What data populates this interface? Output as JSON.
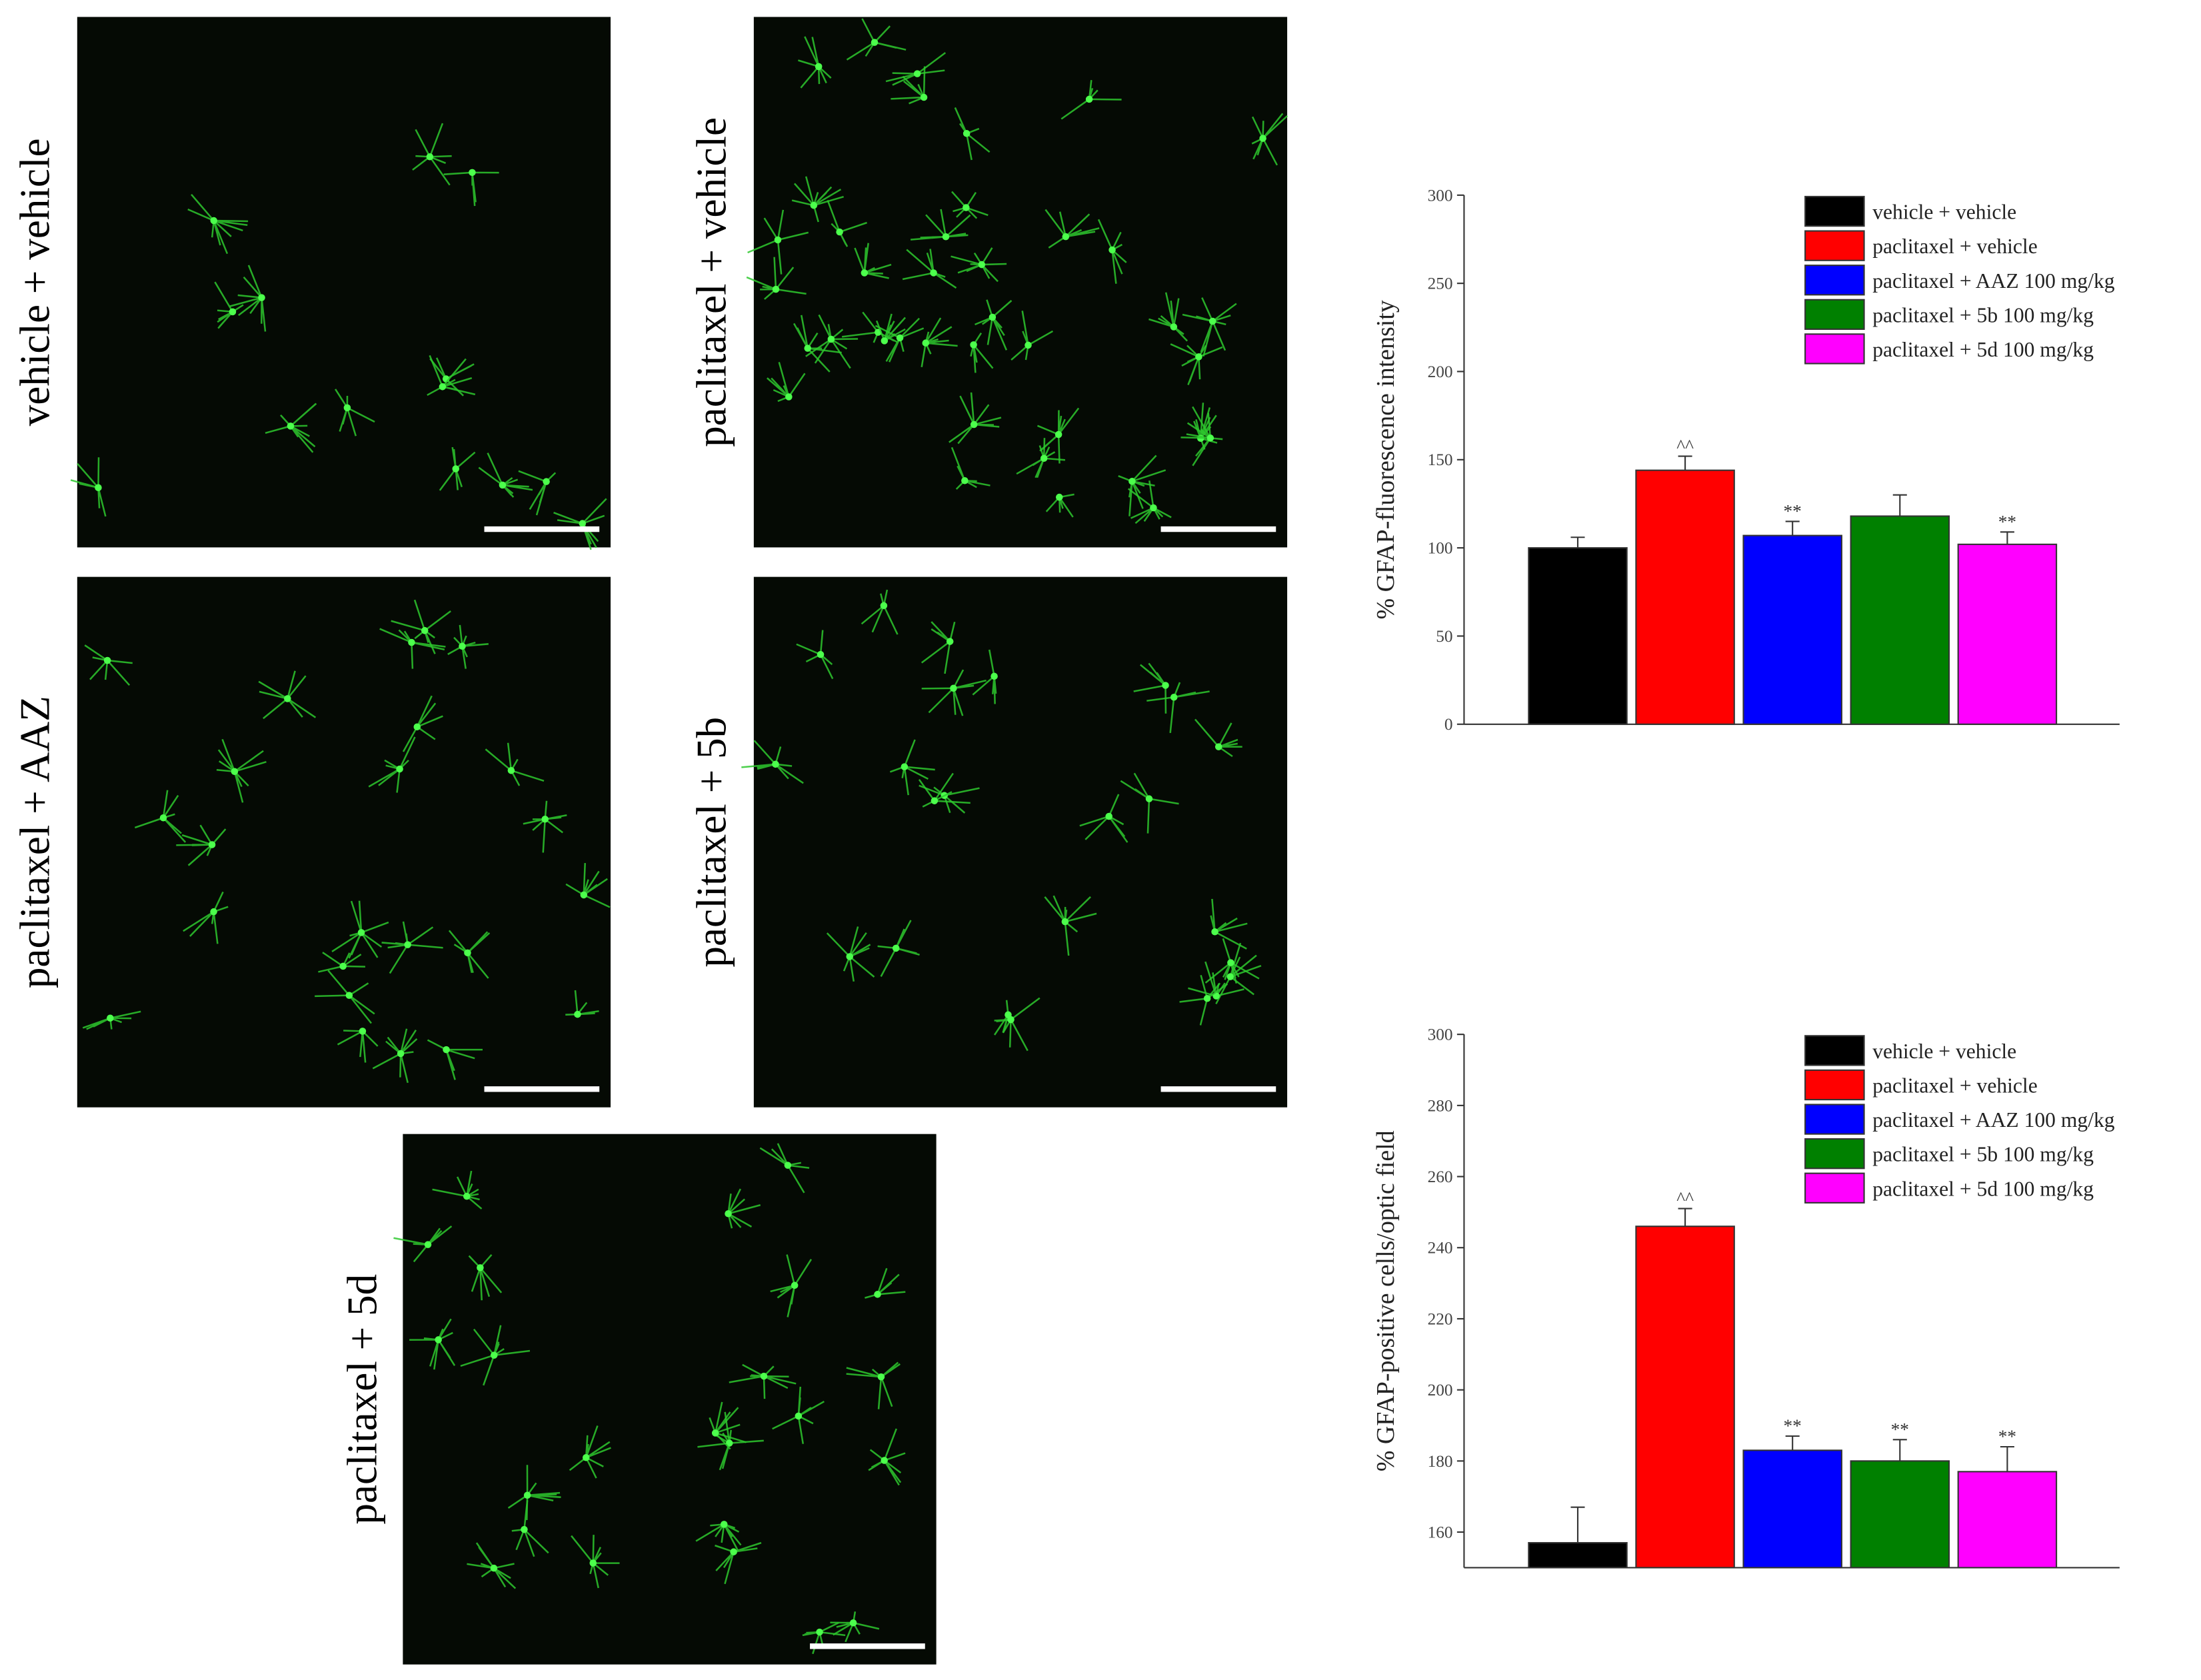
{
  "panels": [
    {
      "label": "vehicle + vehicle"
    },
    {
      "label": "paclitaxel + vehicle"
    },
    {
      "label": "paclitaxel + AAZ"
    },
    {
      "label": "paclitaxel + 5b"
    },
    {
      "label": "paclitaxel + 5d"
    }
  ],
  "chart_data": [
    {
      "type": "bar",
      "y_label": "% GFAP-fluorescence intensity",
      "categories": [
        "vehicle + vehicle",
        "paclitaxel + vehicle",
        "paclitaxel + AAZ 100 mg/kg",
        "paclitaxel + 5b 100 mg/kg",
        "paclitaxel + 5d 100 mg/kg"
      ],
      "colors": [
        "#000000",
        "#ff0000",
        "#0000ff",
        "#008000",
        "#ff00ff"
      ],
      "values": [
        100,
        144,
        107,
        118,
        102
      ],
      "errors": [
        6,
        8,
        8,
        12,
        7
      ],
      "annotations": [
        null,
        "^^",
        "**",
        null,
        "**"
      ],
      "ylim": [
        0,
        300
      ],
      "yticks": [
        0,
        50,
        100,
        150,
        200,
        250,
        300
      ],
      "legend": "upper right"
    },
    {
      "type": "bar",
      "y_label": "% GFAP-positive cells/optic field",
      "categories": [
        "vehicle + vehicle",
        "paclitaxel + vehicle",
        "paclitaxel + AAZ 100 mg/kg",
        "paclitaxel + 5b 100 mg/kg",
        "paclitaxel + 5d 100 mg/kg"
      ],
      "colors": [
        "#000000",
        "#ff0000",
        "#0000ff",
        "#008000",
        "#ff00ff"
      ],
      "values": [
        157,
        246,
        183,
        180,
        177
      ],
      "errors": [
        10,
        5,
        4,
        6,
        7
      ],
      "annotations": [
        null,
        "^^",
        "**",
        "**",
        "**"
      ],
      "ylim": [
        150,
        300
      ],
      "yticks": [
        160,
        180,
        200,
        220,
        240,
        260,
        280,
        300
      ],
      "legend": "upper right"
    }
  ]
}
